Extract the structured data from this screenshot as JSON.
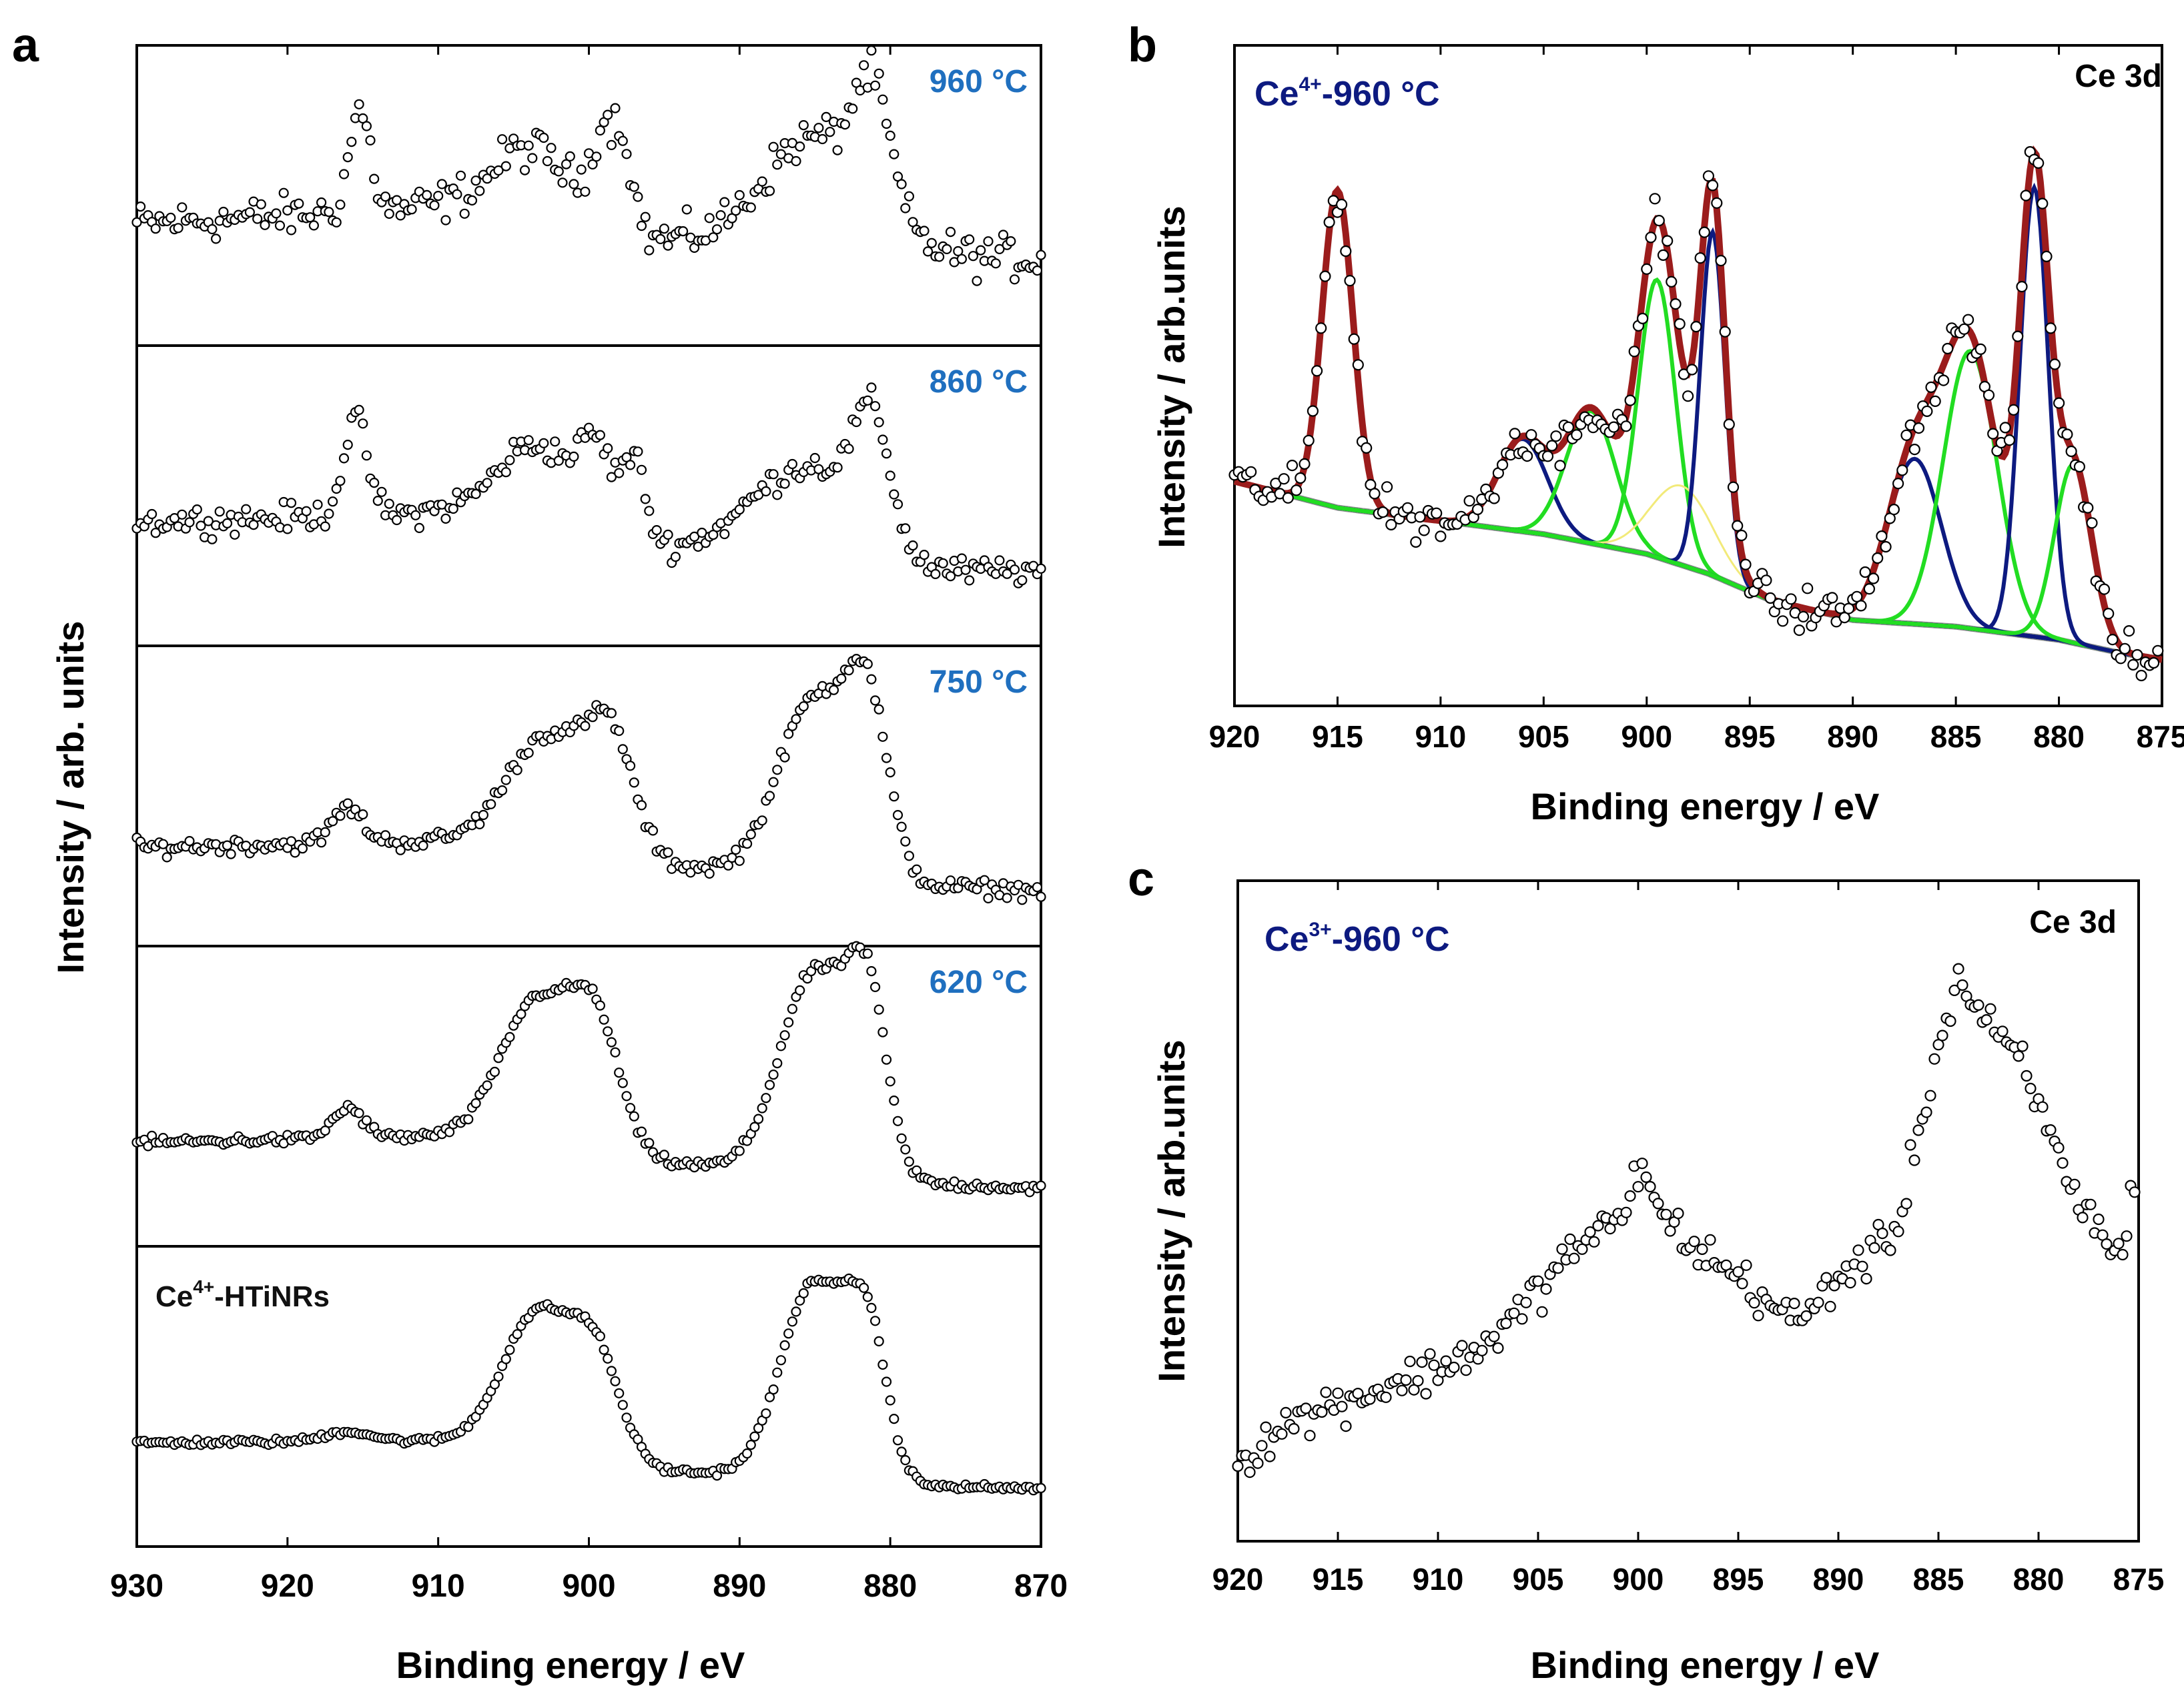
{
  "panels": {
    "a": {
      "letter": "a",
      "ylabel": "Intensity / arb. units",
      "xlabel": "Binding energy / eV"
    },
    "b": {
      "letter": "b",
      "ylabel": "Intensity / arb.units",
      "xlabel": "Binding energy / eV",
      "label_base": "Ce",
      "label_sup": "4+",
      "label_rest": "-960 °C",
      "label_core": "Ce 3d"
    },
    "c": {
      "letter": "c",
      "ylabel": "Intensity / arb.units",
      "xlabel": "Binding energy / eV",
      "label_base": "Ce",
      "label_sup": "3+",
      "label_rest": "-960 °C",
      "label_core": "Ce 3d"
    }
  },
  "colors": {
    "marker_edge": "#000000",
    "temperature_label": "#1f6fbf",
    "sample_label": "#0d1a80",
    "envelope": "#9b1c1c",
    "component_blue": "#0d1a80",
    "component_green": "#22dd22",
    "component_yellow": "#f2ea7a",
    "background": "#8c8c8c"
  },
  "chart_data": [
    {
      "panel": "a",
      "type": "scatter",
      "xlabel": "Binding energy / eV",
      "ylabel": "Intensity / arb. units",
      "xlim": [
        930,
        870
      ],
      "x_reversed": true,
      "xticks": [
        930,
        920,
        910,
        900,
        890,
        880,
        870
      ],
      "yticks": "none",
      "grid": false,
      "stacked_subplots": true,
      "series": [
        {
          "label": "960 °C",
          "label_base": "",
          "label_sup": "",
          "label_rest": "",
          "style": "temperature",
          "noise": 0.09,
          "x_range": [
            930,
            870
          ],
          "baseline": [
            [
              930,
              0.4
            ],
            [
              912,
              0.46
            ],
            [
              905,
              0.52
            ],
            [
              896,
              0.34
            ],
            [
              889,
              0.3
            ],
            [
              879,
              0.28
            ],
            [
              870,
              0.26
            ]
          ],
          "peaks": [
            {
              "center": 915.2,
              "height": 0.4,
              "width": 0.7
            },
            {
              "center": 903.5,
              "height": 0.2,
              "width": 2.5
            },
            {
              "center": 899.2,
              "height": 0.3,
              "width": 0.7
            },
            {
              "center": 897.8,
              "height": 0.34,
              "width": 0.7
            },
            {
              "center": 885.0,
              "height": 0.45,
              "width": 3.5
            },
            {
              "center": 881.2,
              "height": 0.45,
              "width": 1.2
            }
          ]
        },
        {
          "label": "860 °C",
          "label_base": "",
          "label_sup": "",
          "label_rest": "",
          "style": "temperature",
          "noise": 0.06,
          "x_range": [
            930,
            870
          ],
          "baseline": [
            [
              930,
              0.41
            ],
            [
              912,
              0.44
            ],
            [
              905,
              0.5
            ],
            [
              896,
              0.3
            ],
            [
              889,
              0.33
            ],
            [
              879,
              0.2
            ],
            [
              870,
              0.22
            ]
          ],
          "peaks": [
            {
              "center": 915.5,
              "height": 0.38,
              "width": 0.8
            },
            {
              "center": 903.0,
              "height": 0.25,
              "width": 2.5
            },
            {
              "center": 899.5,
              "height": 0.28,
              "width": 1.0
            },
            {
              "center": 897.0,
              "height": 0.32,
              "width": 0.8
            },
            {
              "center": 885.0,
              "height": 0.35,
              "width": 3.5
            },
            {
              "center": 881.2,
              "height": 0.45,
              "width": 1.2
            }
          ]
        },
        {
          "label": "750 °C",
          "label_base": "",
          "label_sup": "",
          "label_rest": "",
          "style": "temperature",
          "noise": 0.035,
          "x_range": [
            930,
            870
          ],
          "baseline": [
            [
              930,
              0.31
            ],
            [
              905,
              0.34
            ],
            [
              895,
              0.24
            ],
            [
              879,
              0.16
            ],
            [
              870,
              0.14
            ]
          ],
          "peaks": [
            {
              "center": 916.0,
              "height": 0.14,
              "width": 1.0
            },
            {
              "center": 902.5,
              "height": 0.44,
              "width": 2.7
            },
            {
              "center": 898.5,
              "height": 0.4,
              "width": 1.5
            },
            {
              "center": 885.0,
              "height": 0.7,
              "width": 2.4
            },
            {
              "center": 881.5,
              "height": 0.6,
              "width": 1.4
            }
          ]
        },
        {
          "label": "620 °C",
          "label_base": "",
          "label_sup": "",
          "label_rest": "",
          "style": "temperature",
          "noise": 0.022,
          "x_range": [
            930,
            870
          ],
          "baseline": [
            [
              930,
              0.33
            ],
            [
              905,
              0.36
            ],
            [
              895,
              0.25
            ],
            [
              879,
              0.17
            ],
            [
              870,
              0.15
            ]
          ],
          "peaks": [
            {
              "center": 916.0,
              "height": 0.12,
              "width": 1.0
            },
            {
              "center": 903.3,
              "height": 0.55,
              "width": 2.4
            },
            {
              "center": 899.5,
              "height": 0.44,
              "width": 1.6
            },
            {
              "center": 885.0,
              "height": 0.8,
              "width": 2.3
            },
            {
              "center": 881.5,
              "height": 0.62,
              "width": 1.3
            }
          ]
        },
        {
          "label": "",
          "label_base": "Ce",
          "label_sup": "4+",
          "label_rest": "-HTiNRs",
          "style": "sample",
          "noise": 0.014,
          "x_range": [
            930,
            870
          ],
          "baseline": [
            [
              930,
              0.33
            ],
            [
              905,
              0.34
            ],
            [
              895,
              0.22
            ],
            [
              879,
              0.16
            ],
            [
              870,
              0.15
            ]
          ],
          "peaks": [
            {
              "center": 916.0,
              "height": 0.04,
              "width": 1.5
            },
            {
              "center": 903.3,
              "height": 0.52,
              "width": 2.3
            },
            {
              "center": 899.5,
              "height": 0.36,
              "width": 1.6
            },
            {
              "center": 885.0,
              "height": 0.78,
              "width": 2.2
            },
            {
              "center": 881.5,
              "height": 0.52,
              "width": 1.3
            }
          ]
        }
      ]
    },
    {
      "panel": "b",
      "type": "scatter",
      "xlabel": "Binding energy / eV",
      "ylabel": "Intensity / arb.units",
      "xlim": [
        920,
        875
      ],
      "x_reversed": true,
      "xticks": [
        920,
        915,
        910,
        905,
        900,
        895,
        890,
        885,
        880,
        875
      ],
      "yticks": "none",
      "ylim": [
        0,
        1
      ],
      "grid": false,
      "legend": "none",
      "annotations": [
        "Ce4+-960 °C",
        "Ce 3d"
      ],
      "background": [
        [
          920,
          0.34
        ],
        [
          915,
          0.3
        ],
        [
          910,
          0.28
        ],
        [
          905,
          0.26
        ],
        [
          900,
          0.23
        ],
        [
          897,
          0.2
        ],
        [
          894,
          0.16
        ],
        [
          890,
          0.13
        ],
        [
          885,
          0.12
        ],
        [
          880,
          0.1
        ],
        [
          877,
          0.08
        ],
        [
          875,
          0.07
        ]
      ],
      "components": [
        {
          "color": "blue",
          "center": 906.0,
          "height": 0.14,
          "width": 1.2
        },
        {
          "color": "green",
          "center": 902.7,
          "height": 0.2,
          "width": 1.2
        },
        {
          "color": "green",
          "center": 899.5,
          "height": 0.42,
          "width": 0.9
        },
        {
          "color": "yellow",
          "center": 898.3,
          "height": 0.12,
          "width": 1.5
        },
        {
          "color": "blue",
          "center": 896.8,
          "height": 0.52,
          "width": 0.6
        },
        {
          "color": "blue",
          "center": 915.0,
          "height": 0.48,
          "width": 0.75
        },
        {
          "color": "blue",
          "center": 887.0,
          "height": 0.25,
          "width": 1.3
        },
        {
          "color": "green",
          "center": 884.3,
          "height": 0.42,
          "width": 1.3
        },
        {
          "color": "blue",
          "center": 881.2,
          "height": 0.68,
          "width": 0.7
        },
        {
          "color": "green",
          "center": 879.3,
          "height": 0.27,
          "width": 0.9
        }
      ],
      "envelope_peaks": [
        {
          "center": 915.0,
          "height": 0.48,
          "width": 0.75
        },
        {
          "center": 906.0,
          "height": 0.14,
          "width": 1.2
        },
        {
          "center": 902.7,
          "height": 0.2,
          "width": 1.2
        },
        {
          "center": 899.5,
          "height": 0.42,
          "width": 0.9
        },
        {
          "center": 898.3,
          "height": 0.12,
          "width": 1.5
        },
        {
          "center": 896.8,
          "height": 0.52,
          "width": 0.6
        },
        {
          "center": 887.0,
          "height": 0.25,
          "width": 1.3
        },
        {
          "center": 884.3,
          "height": 0.42,
          "width": 1.3
        },
        {
          "center": 881.2,
          "height": 0.68,
          "width": 0.7
        },
        {
          "center": 879.3,
          "height": 0.27,
          "width": 0.9
        }
      ],
      "points_noise": 0.035
    },
    {
      "panel": "c",
      "type": "scatter",
      "xlabel": "Binding energy / eV",
      "ylabel": "Intensity / arb.units",
      "xlim": [
        920,
        875
      ],
      "x_reversed": true,
      "xticks": [
        920,
        915,
        910,
        905,
        900,
        895,
        890,
        885,
        880,
        875
      ],
      "yticks": "none",
      "ylim": [
        0,
        1
      ],
      "grid": false,
      "annotations": [
        "Ce3+-960 °C",
        "Ce 3d"
      ],
      "noise": 0.035,
      "profile": [
        [
          920,
          0.12
        ],
        [
          918,
          0.17
        ],
        [
          915,
          0.21
        ],
        [
          912,
          0.24
        ],
        [
          910,
          0.26
        ],
        [
          907,
          0.31
        ],
        [
          905,
          0.38
        ],
        [
          903,
          0.45
        ],
        [
          901,
          0.48
        ],
        [
          900,
          0.57
        ],
        [
          899,
          0.5
        ],
        [
          897,
          0.44
        ],
        [
          895,
          0.4
        ],
        [
          893,
          0.35
        ],
        [
          892,
          0.33
        ],
        [
          890,
          0.4
        ],
        [
          888,
          0.44
        ],
        [
          887,
          0.48
        ],
        [
          886,
          0.62
        ],
        [
          885,
          0.75
        ],
        [
          884,
          0.85
        ],
        [
          883,
          0.8
        ],
        [
          882,
          0.76
        ],
        [
          881,
          0.73
        ],
        [
          880,
          0.66
        ],
        [
          879,
          0.58
        ],
        [
          878,
          0.52
        ],
        [
          877,
          0.47
        ],
        [
          876,
          0.43
        ],
        [
          875,
          0.58
        ]
      ]
    }
  ]
}
